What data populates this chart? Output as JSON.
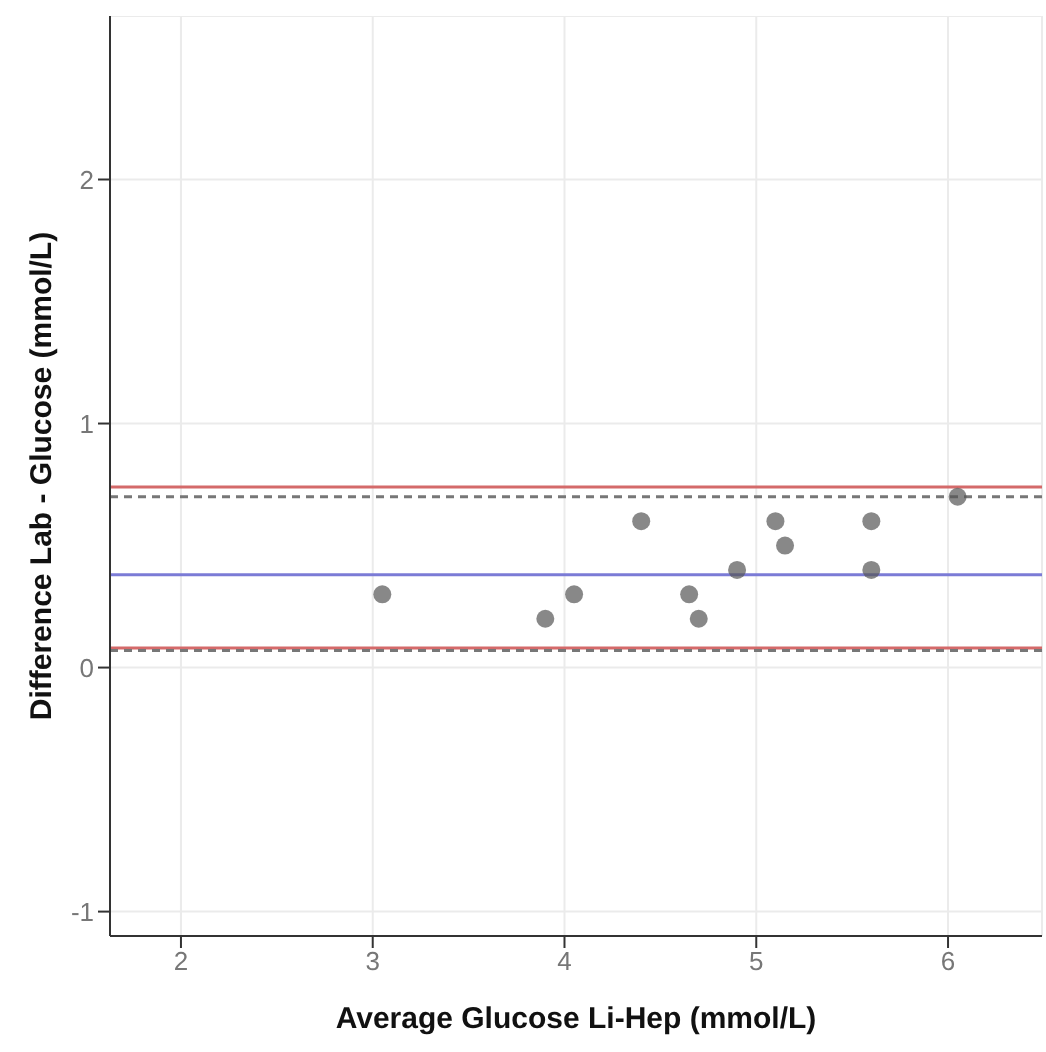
{
  "chart_data": {
    "type": "scatter",
    "xlabel": "Average Glucose Li-Hep (mmol/L)",
    "ylabel": "Difference Lab - Glucose (mmol/L)",
    "x": [
      3.05,
      3.9,
      4.05,
      4.4,
      4.65,
      4.7,
      4.9,
      5.1,
      5.15,
      5.6,
      5.6,
      6.05
    ],
    "series": [
      {
        "color": "#555555",
        "values": [
          0.3,
          0.2,
          0.3,
          0.6,
          0.3,
          0.2,
          0.4,
          0.6,
          0.5,
          0.6,
          0.4,
          0.7
        ]
      }
    ],
    "xlim": [
      1.63,
      6.49
    ],
    "xticks": [
      2,
      3,
      4,
      5,
      6
    ],
    "ylim": [
      -1.1,
      2.67
    ],
    "yticks": [
      -1,
      0,
      1,
      2
    ],
    "ref_lines": [
      {
        "axis": "y",
        "value": 0.74,
        "color": "#d46a6a",
        "line_style": "solid"
      },
      {
        "axis": "y",
        "value": 0.7,
        "color": "#777777",
        "line_style": "dashed"
      },
      {
        "axis": "y",
        "value": 0.38,
        "color": "#7b7bd6",
        "line_style": "solid"
      },
      {
        "axis": "y",
        "value": 0.08,
        "color": "#d46a6a",
        "line_style": "solid"
      },
      {
        "axis": "y",
        "value": 0.07,
        "color": "#777777",
        "line_style": "dashed"
      }
    ],
    "grid": true,
    "marker": "circle"
  }
}
